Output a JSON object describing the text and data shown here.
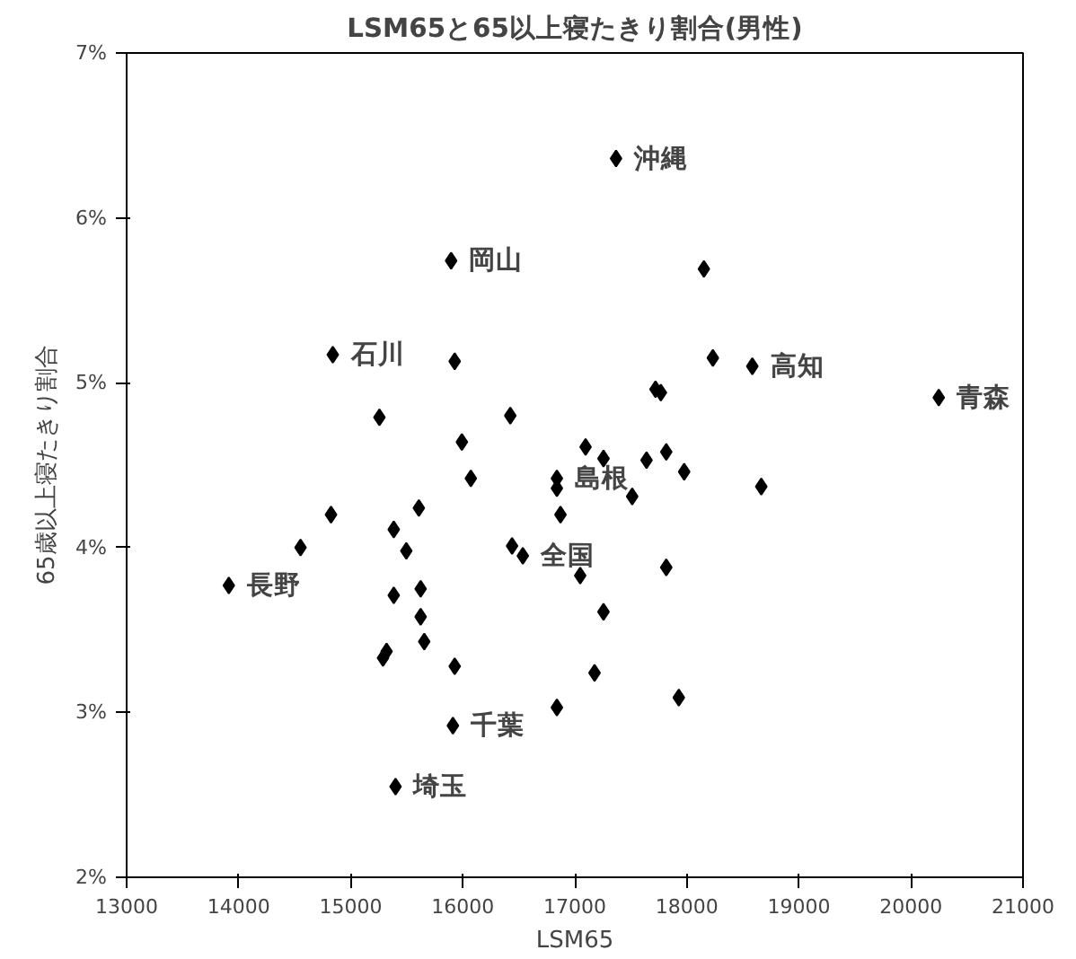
{
  "chart_data": {
    "type": "scatter",
    "title": "LSM65と65以上寝たきり割合(男性)",
    "xlabel": "LSM65",
    "ylabel": "65歳以上寝たきり割合",
    "x": [
      17368,
      15896,
      14840,
      15928,
      18152,
      18232,
      18584,
      17720,
      17768,
      20248,
      15256,
      16424,
      15992,
      17096,
      17256,
      17640,
      17816,
      17976,
      17512,
      18664,
      16840,
      16840,
      16872,
      16072,
      14824,
      14552,
      13912,
      15384,
      15608,
      15496,
      15384,
      15624,
      15624,
      15656,
      15320,
      15288,
      15928,
      15912,
      15400,
      16840,
      16440,
      16536,
      17048,
      17176,
      17256,
      17816,
      17928
    ],
    "values": [
      6.36,
      5.74,
      5.17,
      5.13,
      5.69,
      5.15,
      5.1,
      4.96,
      4.94,
      4.91,
      4.79,
      4.8,
      4.64,
      4.61,
      4.54,
      4.53,
      4.58,
      4.46,
      4.31,
      4.37,
      4.42,
      4.36,
      4.2,
      4.42,
      4.2,
      4.0,
      3.77,
      4.11,
      4.24,
      3.98,
      3.71,
      3.75,
      3.58,
      3.43,
      3.37,
      3.33,
      3.28,
      2.92,
      2.55,
      3.03,
      4.01,
      3.95,
      3.83,
      3.24,
      3.61,
      3.88,
      3.09
    ],
    "color": "#000000",
    "marker": "diamond",
    "grid": false,
    "legend": false,
    "xlim": [
      13000,
      21000
    ],
    "xticks": [
      13000,
      14000,
      15000,
      16000,
      17000,
      18000,
      19000,
      20000,
      21000
    ],
    "ylim": [
      2,
      7
    ],
    "yticks": [
      {
        "value": 2,
        "label": "2%"
      },
      {
        "value": 3,
        "label": "3%"
      },
      {
        "value": 4,
        "label": "4%"
      },
      {
        "value": 5,
        "label": "5%"
      },
      {
        "value": 6,
        "label": "6%"
      },
      {
        "value": 7,
        "label": "7%"
      }
    ],
    "annotations": [
      {
        "text": "沖縄",
        "x": 17368,
        "y": 6.36
      },
      {
        "text": "岡山",
        "x": 15896,
        "y": 5.74
      },
      {
        "text": "石川",
        "x": 14840,
        "y": 5.17
      },
      {
        "text": "高知",
        "x": 18584,
        "y": 5.1
      },
      {
        "text": "青森",
        "x": 20248,
        "y": 4.91
      },
      {
        "text": "島根",
        "x": 16840,
        "y": 4.42
      },
      {
        "text": "全国",
        "x": 16536,
        "y": 3.95
      },
      {
        "text": "長野",
        "x": 13912,
        "y": 3.77
      },
      {
        "text": "千葉",
        "x": 15912,
        "y": 2.92
      },
      {
        "text": "埼玉",
        "x": 15400,
        "y": 2.55
      }
    ]
  }
}
